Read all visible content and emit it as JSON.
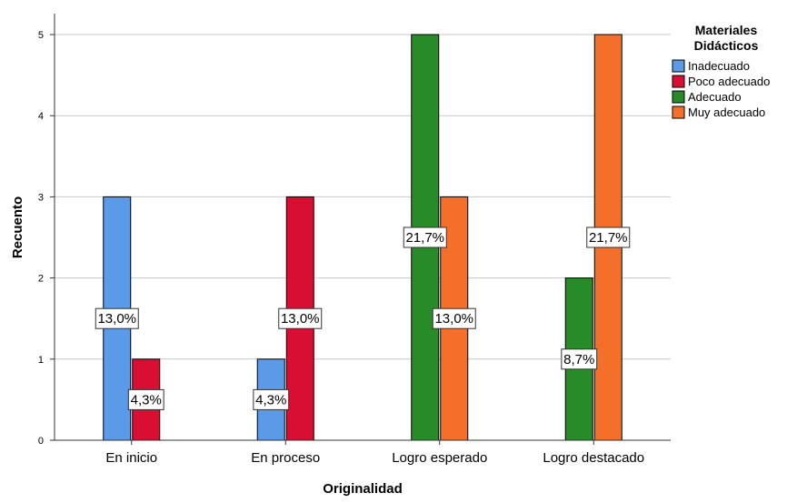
{
  "chart_data": {
    "type": "bar",
    "title": "",
    "xlabel": "Originalidad",
    "ylabel": "Recuento",
    "categories": [
      "En inicio",
      "En proceso",
      "Logro esperado",
      "Logro destacado"
    ],
    "ylim": [
      0,
      5
    ],
    "yticks": [
      0,
      1,
      2,
      3,
      4,
      5
    ],
    "grid": true,
    "legend": {
      "title_lines": [
        "Materiales",
        "Didácticos"
      ],
      "placement": "top-right"
    },
    "series": [
      {
        "name": "Inadecuado",
        "color": "#5a9ae6",
        "values": [
          3,
          1,
          null,
          null
        ],
        "labels": [
          "13,0%",
          "4,3%",
          null,
          null
        ]
      },
      {
        "name": "Poco adecuado",
        "color": "#d80f32",
        "values": [
          1,
          3,
          null,
          null
        ],
        "labels": [
          "4,3%",
          "13,0%",
          null,
          null
        ]
      },
      {
        "name": "Adecuado",
        "color": "#278b27",
        "values": [
          null,
          null,
          5,
          2
        ],
        "labels": [
          null,
          null,
          "21,7%",
          "8,7%"
        ]
      },
      {
        "name": "Muy adecuado",
        "color": "#f36f2a",
        "values": [
          null,
          null,
          3,
          5
        ],
        "labels": [
          null,
          null,
          "13,0%",
          "21,7%"
        ]
      }
    ]
  }
}
